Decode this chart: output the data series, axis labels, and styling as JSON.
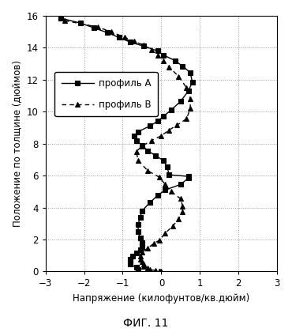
{
  "profile_A_x": [
    -2.6,
    -2.1,
    -1.75,
    -1.4,
    -1.1,
    -0.8,
    -0.45,
    -0.1,
    0.05,
    0.35,
    0.55,
    0.75,
    0.8,
    0.7,
    0.5,
    0.25,
    0.05,
    -0.1,
    -0.3,
    -0.6,
    -0.7,
    -0.65,
    -0.5,
    -0.35,
    -0.15,
    0.05,
    0.15,
    0.2,
    0.7,
    0.7,
    0.5,
    0.1,
    -0.1,
    -0.3,
    -0.5,
    -0.55,
    -0.6,
    -0.6,
    -0.55,
    -0.5,
    -0.5,
    -0.55,
    -0.65,
    -0.75,
    -0.8,
    -0.8,
    -0.8,
    -0.65,
    -0.6
  ],
  "profile_A_y": [
    15.85,
    15.55,
    15.25,
    14.95,
    14.65,
    14.35,
    14.1,
    13.8,
    13.55,
    13.2,
    12.85,
    12.45,
    11.85,
    11.3,
    10.65,
    10.1,
    9.7,
    9.4,
    9.1,
    8.75,
    8.5,
    8.2,
    7.9,
    7.55,
    7.25,
    6.95,
    6.55,
    6.05,
    5.95,
    5.85,
    5.45,
    5.1,
    4.75,
    4.3,
    3.8,
    3.4,
    2.95,
    2.5,
    2.1,
    1.8,
    1.55,
    1.35,
    1.15,
    0.95,
    0.75,
    0.6,
    0.45,
    0.25,
    0.1
  ],
  "profile_B_x": [
    -2.5,
    -1.65,
    -1.3,
    -0.95,
    -0.7,
    -0.45,
    -0.25,
    -0.1,
    0.05,
    0.2,
    0.45,
    0.65,
    0.75,
    0.75,
    0.65,
    0.4,
    0.2,
    0.0,
    -0.25,
    -0.5,
    -0.65,
    -0.6,
    -0.35,
    -0.05,
    0.1,
    0.25,
    0.5,
    0.55,
    0.55,
    0.45,
    0.3,
    0.1,
    -0.05,
    -0.2,
    -0.35,
    -0.5,
    -0.55,
    -0.55,
    -0.5,
    -0.45,
    -0.45,
    -0.35,
    -0.3,
    -0.15,
    -0.05,
    0.0,
    -0.05,
    -0.05
  ],
  "profile_B_y": [
    15.7,
    15.3,
    15.0,
    14.65,
    14.4,
    14.15,
    13.85,
    13.55,
    13.2,
    12.8,
    12.2,
    11.5,
    10.8,
    10.2,
    9.55,
    9.15,
    8.85,
    8.5,
    8.2,
    7.85,
    7.5,
    6.95,
    6.3,
    5.9,
    5.45,
    5.0,
    4.55,
    4.1,
    3.75,
    3.3,
    2.85,
    2.4,
    1.95,
    1.75,
    1.45,
    1.2,
    0.95,
    0.75,
    0.6,
    0.45,
    0.3,
    0.2,
    0.1,
    0.07,
    0.04,
    0.02,
    0.01,
    0.0
  ],
  "xlabel": "Напряжение (килофунтов/кв.дюйм)",
  "ylabel": "Положение по толщине (дюймов)",
  "caption": "ФИГ. 11",
  "legend_A": "профиль A",
  "legend_B": "профиль B",
  "xlim": [
    -3,
    3
  ],
  "ylim": [
    0,
    16
  ],
  "xticks": [
    -3,
    -2,
    -1,
    0,
    1,
    2,
    3
  ],
  "yticks": [
    0,
    2,
    4,
    6,
    8,
    10,
    12,
    14,
    16
  ],
  "line_color": "#000000",
  "bg_color": "#ffffff",
  "grid_color": "#999999"
}
